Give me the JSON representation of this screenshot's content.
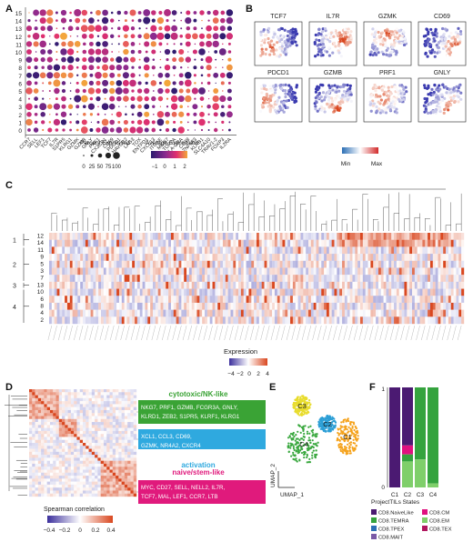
{
  "panels": {
    "A": "A",
    "B": "B",
    "C": "C",
    "D": "D",
    "E": "E",
    "F": "F"
  },
  "panelA": {
    "clusters": [
      "15",
      "14",
      "13",
      "12",
      "11",
      "10",
      "9",
      "8",
      "7",
      "6",
      "5",
      "4",
      "3",
      "2",
      "1",
      "0"
    ],
    "genes": [
      "CCR7",
      "SELL",
      "LEF1",
      "TCF7",
      "IL7R",
      "S1PR5",
      "KLRG1",
      "GZMK",
      "GZMB",
      "GNLY",
      "PRF1",
      "CX3CR1",
      "CD69",
      "PDCD1",
      "HAVCR2",
      "LAG3",
      "TOX",
      "ENTPD1",
      "CXCL13",
      "ITGAE",
      "MKI67",
      "TOP2A",
      "HLA-DRA",
      "CD38",
      "ZNF683",
      "KLRB1",
      "SLC4A10",
      "TRAV1-2",
      "FOXP3",
      "IL2RA"
    ],
    "legend_size_title": "Percent Expressed",
    "legend_size_labels": [
      "0",
      "25",
      "50",
      "75",
      "100"
    ],
    "legend_color_title": "Average Expression",
    "legend_color_labels": [
      "−1",
      "0",
      "1",
      "2"
    ]
  },
  "panelB": {
    "genes": [
      "TCF7",
      "IL7R",
      "GZMK",
      "CD69",
      "PDCD1",
      "GZMB",
      "PRF1",
      "GNLY"
    ],
    "scale_min": "Min",
    "scale_max": "Max"
  },
  "panelC": {
    "row_labels": [
      "12",
      "14",
      "11",
      "9",
      "5",
      "3",
      "7",
      "13",
      "10",
      "6",
      "8",
      "4",
      "2"
    ],
    "group_labels": [
      "1",
      "2",
      "3",
      "4"
    ],
    "legend_title": "Expression",
    "legend_labels": [
      "−4",
      "−2",
      "0",
      "2",
      "4"
    ]
  },
  "panelD": {
    "modules": [
      {
        "title": "cytotoxic/NK-like",
        "genes": "NKG7, PRF1, GZMB, FCGR3A, GNLY, KLRD1, ZEB2, S1PR5, KLRF1, KLRG1",
        "color": "#3aa335"
      },
      {
        "title": "activation",
        "genes": "XCL1, CCL3, CD69, GZMK, NR4A2, CXCR4",
        "color": "#2fa9df"
      },
      {
        "title": "naive/stem-like",
        "genes": "MYC, CD27, SELL, NELL2, IL7R, TCF7, MAL, LEF1, CCR7, LTB",
        "color": "#e01a7c"
      }
    ],
    "legend_title": "Spearman correlation",
    "legend_labels": [
      "−0.4",
      "−0.2",
      "0",
      "0.2",
      "0.4"
    ]
  },
  "panelE": {
    "clusters": [
      "C1",
      "C2",
      "C3",
      "C4"
    ],
    "xlabel": "UMAP_1",
    "ylabel": "UMAP_2"
  },
  "panelF": {
    "chart_data": {
      "type": "bar",
      "categories": [
        "C1",
        "C2",
        "C3",
        "C4"
      ],
      "ylim": [
        0,
        1
      ],
      "yticks": [
        "0",
        "1"
      ],
      "series": [
        {
          "name": "CD8.NaiveLike",
          "color": "#4b1a72",
          "values": [
            1.0,
            0.58,
            0.0,
            0.0
          ]
        },
        {
          "name": "CD8.CM",
          "color": "#e0117f",
          "values": [
            0.0,
            0.09,
            0.0,
            0.0
          ]
        },
        {
          "name": "CD8.TEMRA",
          "color": "#35a33e",
          "values": [
            0.0,
            0.07,
            0.72,
            0.96
          ]
        },
        {
          "name": "CD8.EM",
          "color": "#7fcf6a",
          "values": [
            0.0,
            0.26,
            0.28,
            0.04
          ]
        },
        {
          "name": "CD8.TPEX",
          "color": "#2c6fb5",
          "values": [
            0,
            0,
            0,
            0
          ]
        },
        {
          "name": "CD8.TEX",
          "color": "#b0165e",
          "values": [
            0,
            0,
            0,
            0
          ]
        },
        {
          "name": "CD8.MAIT",
          "color": "#7a5aa6",
          "values": [
            0,
            0,
            0,
            0
          ]
        }
      ],
      "legend_title": "ProjectTILs States"
    }
  }
}
